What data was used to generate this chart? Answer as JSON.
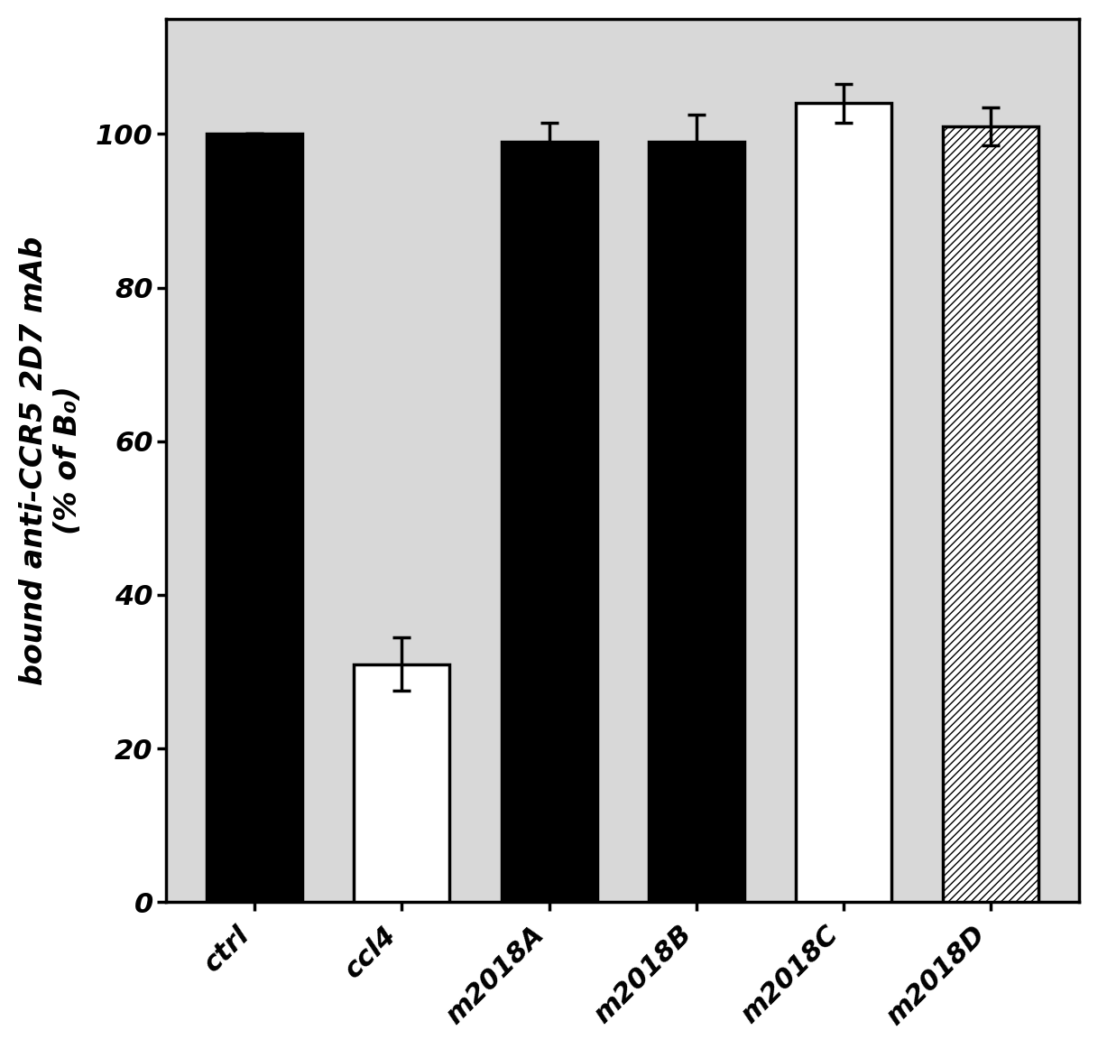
{
  "categories": [
    "ctrl",
    "ccl4",
    "m2018A",
    "m2018B",
    "m2018C",
    "m2018D"
  ],
  "values": [
    100,
    31,
    99,
    99,
    104,
    101
  ],
  "errors": [
    0,
    3.5,
    2.5,
    3.5,
    2.5,
    2.5
  ],
  "bar_colors": [
    "#000000",
    "#ffffff",
    "#000000",
    "#000000",
    "#ffffff",
    "#ffffff"
  ],
  "bar_edgecolors": [
    "#000000",
    "#000000",
    "#000000",
    "#000000",
    "#000000",
    "#000000"
  ],
  "hatch_patterns": [
    "",
    "",
    "",
    "",
    "",
    "////"
  ],
  "ylabel_line1": "bound anti-CCR5 2D7 mAb",
  "ylabel_line2": "(% of B₀)",
  "ylim": [
    0,
    115
  ],
  "yticks": [
    0,
    20,
    40,
    60,
    80,
    100
  ],
  "tick_labels": [
    "ctrl",
    "ccl4",
    "m2018A",
    "m2018B",
    "m2018C",
    "m2018D"
  ],
  "plot_bg_color": "#d8d8d8",
  "fig_bg_color": "#ffffff",
  "bar_width": 0.65,
  "label_fontsize": 24,
  "tick_fontsize": 22,
  "figsize": [
    12.17,
    11.62
  ],
  "dpi": 100
}
